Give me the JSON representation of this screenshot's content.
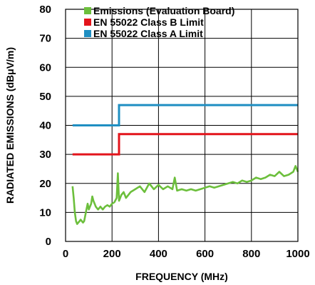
{
  "chart_data": {
    "type": "line",
    "xlabel": "FREQUENCY (MHz)",
    "ylabel": "RADIATED EMISSIONS (dBμV/m)",
    "xlim": [
      0,
      1000
    ],
    "ylim": [
      0,
      80
    ],
    "xticks": [
      0,
      200,
      400,
      600,
      800,
      1000
    ],
    "yticks": [
      0,
      10,
      20,
      30,
      40,
      50,
      60,
      70,
      80
    ],
    "grid": true,
    "legend_position": "top-left",
    "series": [
      {
        "name": "Emissions (Evaluation Board)",
        "color": "#6cbf3c",
        "x": [
          30,
          35,
          40,
          45,
          50,
          55,
          60,
          65,
          70,
          75,
          80,
          85,
          90,
          95,
          100,
          110,
          115,
          120,
          125,
          130,
          140,
          150,
          160,
          170,
          180,
          190,
          200,
          210,
          220,
          225,
          230,
          235,
          240,
          250,
          260,
          280,
          300,
          320,
          340,
          360,
          380,
          400,
          420,
          440,
          460,
          470,
          480,
          500,
          520,
          540,
          560,
          580,
          600,
          620,
          640,
          660,
          680,
          700,
          720,
          740,
          760,
          780,
          800,
          820,
          840,
          860,
          880,
          900,
          920,
          940,
          960,
          980,
          990,
          1000
        ],
        "y": [
          19,
          15,
          10,
          7,
          6,
          6.5,
          7,
          7.5,
          7,
          6.5,
          7,
          9,
          11,
          13,
          11,
          13,
          15.5,
          14,
          13,
          12,
          11,
          12,
          11,
          12,
          12.5,
          12,
          13,
          13.5,
          15,
          23.5,
          14,
          15,
          16,
          17,
          15,
          17,
          18,
          19,
          17,
          20,
          18,
          19.5,
          18,
          19,
          18,
          22,
          17.5,
          18,
          17.5,
          18,
          17.5,
          18,
          18.5,
          19,
          18.5,
          19,
          19.5,
          20,
          20.5,
          20,
          21,
          20.5,
          21,
          22,
          21.5,
          22,
          23,
          22.5,
          24,
          22.5,
          23,
          24,
          26,
          24
        ]
      },
      {
        "name": "EN 55022 Class B Limit",
        "color": "#e3141b",
        "x": [
          30,
          230,
          230,
          1000
        ],
        "y": [
          30,
          30,
          37,
          37
        ]
      },
      {
        "name": "EN 55022 Class A Limit",
        "color": "#1f8fc2",
        "x": [
          30,
          230,
          230,
          1000
        ],
        "y": [
          40,
          40,
          47,
          47
        ]
      }
    ]
  }
}
